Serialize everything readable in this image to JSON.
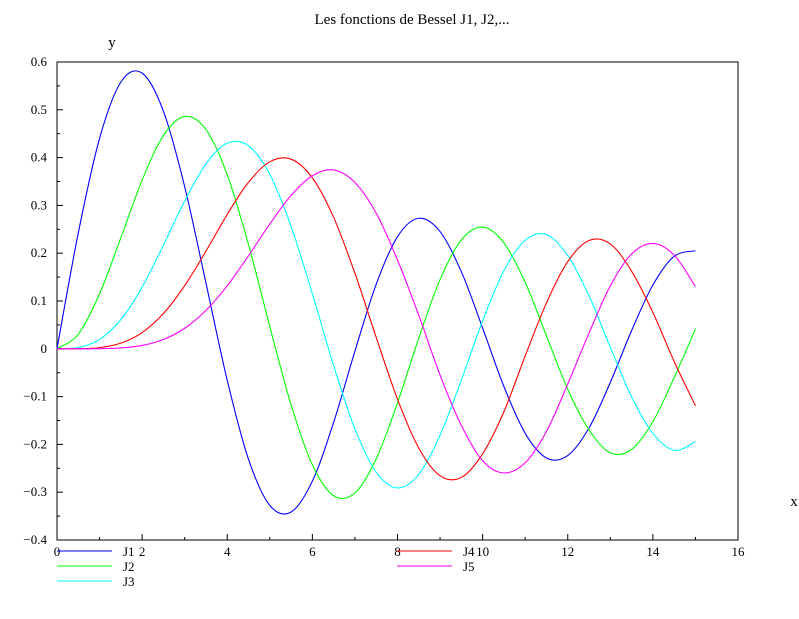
{
  "chart_data": {
    "type": "line",
    "title": "Les fonctions de Bessel J1, J2,...",
    "xlabel": "x",
    "ylabel": "y",
    "xlim": [
      0,
      16
    ],
    "ylim": [
      -0.4,
      0.6
    ],
    "grid": false,
    "legend_position": "bottom",
    "x_ticks": [
      0,
      2,
      4,
      6,
      8,
      10,
      12,
      14,
      16
    ],
    "x_tick_labels": [
      "0",
      "2",
      "4",
      "6",
      "8",
      "10",
      "12",
      "14",
      "16"
    ],
    "y_ticks": [
      -0.4,
      -0.3,
      -0.2,
      -0.1,
      0,
      0.1,
      0.2,
      0.3,
      0.4,
      0.5,
      0.6
    ],
    "y_tick_labels": [
      "−0.4",
      "−0.3",
      "−0.2",
      "−0.1",
      "0",
      "0.1",
      "0.2",
      "0.3",
      "0.4",
      "0.5",
      "0.6"
    ],
    "x": [
      0,
      0.5,
      1,
      1.5,
      2,
      2.5,
      3,
      3.5,
      4,
      4.5,
      5,
      5.5,
      6,
      6.5,
      7,
      7.5,
      8,
      8.5,
      9,
      9.5,
      10,
      10.5,
      11,
      11.5,
      12,
      12.5,
      13,
      13.5,
      14,
      14.5,
      15
    ],
    "series": [
      {
        "name": "J1",
        "color": "#0000ff",
        "values": [
          0,
          0.2423,
          0.4401,
          0.5579,
          0.5767,
          0.4971,
          0.3391,
          0.1374,
          -0.066,
          -0.2311,
          -0.3276,
          -0.3414,
          -0.2767,
          -0.1538,
          -0.0047,
          0.1352,
          0.2346,
          0.2731,
          0.2453,
          0.1613,
          0.0435,
          -0.0789,
          -0.1768,
          -0.2284,
          -0.2234,
          -0.1655,
          -0.0703,
          0.038,
          0.1334,
          0.1934,
          0.2051
        ]
      },
      {
        "name": "J2",
        "color": "#00ff00",
        "values": [
          0,
          0.0306,
          0.1149,
          0.2321,
          0.3528,
          0.4461,
          0.4861,
          0.4586,
          0.3641,
          0.2178,
          0.0466,
          -0.1173,
          -0.2429,
          -0.3074,
          -0.3014,
          -0.2303,
          -0.113,
          0.0223,
          0.1448,
          0.2279,
          0.2546,
          0.2216,
          0.139,
          0.0272,
          -0.0849,
          -0.1696,
          -0.2177,
          -0.2104,
          -0.1524,
          -0.0603,
          0.0416
        ]
      },
      {
        "name": "J3",
        "color": "#00ffff",
        "values": [
          0,
          0.0026,
          0.0196,
          0.061,
          0.1289,
          0.2166,
          0.3091,
          0.3868,
          0.4302,
          0.4247,
          0.3648,
          0.2561,
          0.1148,
          -0.0353,
          -0.1676,
          -0.2581,
          -0.2911,
          -0.2626,
          -0.1809,
          -0.0653,
          0.0584,
          0.1633,
          0.2273,
          0.2389,
          0.1951,
          0.1107,
          0.0033,
          -0.1005,
          -0.1768,
          -0.2124,
          -0.1943
        ]
      },
      {
        "name": "J4",
        "color": "#ff0000",
        "values": [
          0,
          0.0002,
          0.0025,
          0.0118,
          0.034,
          0.0738,
          0.1321,
          0.2044,
          0.2811,
          0.3484,
          0.3912,
          0.3967,
          0.3576,
          0.2748,
          0.1578,
          0.0239,
          -0.1054,
          -0.2077,
          -0.2655,
          -0.2691,
          -0.2196,
          -0.1317,
          -0.015,
          0.0962,
          0.1825,
          0.2266,
          0.2193,
          0.1624,
          0.0762,
          -0.0265,
          -0.1192
        ]
      },
      {
        "name": "J5",
        "color": "#ff00ff",
        "values": [
          0,
          0.0,
          0.0003,
          0.0018,
          0.007,
          0.0195,
          0.043,
          0.0804,
          0.1321,
          0.1947,
          0.2611,
          0.3209,
          0.3621,
          0.3741,
          0.3479,
          0.2835,
          0.1858,
          0.07,
          -0.055,
          -0.1603,
          -0.2341,
          -0.2596,
          -0.2383,
          -0.173,
          -0.0735,
          0.0329,
          0.1316,
          0.1983,
          0.2204,
          0.1959,
          0.1301
        ]
      }
    ]
  }
}
